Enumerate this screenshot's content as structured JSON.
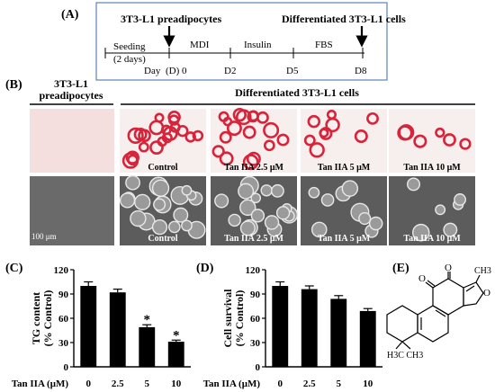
{
  "panel_labels": {
    "a": "(A)",
    "b": "(B)",
    "c": "(C)",
    "d": "(D)",
    "e": "(E)"
  },
  "timeline": {
    "start_label": "3T3-L1 preadipocytes",
    "end_label": "Differentiated 3T3-L1 cells",
    "seeding": "Seeding",
    "seeding_days": "(2 days)",
    "day_prefix": "Day",
    "day0": "(D) 0",
    "d2": "D2",
    "d5": "D5",
    "d8": "D8",
    "stage_mdi": "MDI",
    "stage_insulin": "Insulin",
    "stage_fbs": "FBS"
  },
  "micrographs": {
    "header_left_line1": "3T3-L1",
    "header_left_line2": "preadipocytes",
    "header_right": "Differentiated 3T3-L1 cells",
    "scale_bar": "100 μm",
    "captions": [
      "Control",
      "Tan IIA 2.5 μM",
      "Tan IIA  5 μM",
      "Tan IIA  10 μM"
    ],
    "bottom_captions": [
      "Control",
      "Tan IIA 2.5 μM",
      "Tan IIA  5 μM",
      "Tan IIA  10 μM"
    ],
    "stain_color": "#d8243a",
    "background_color": "#f4dede"
  },
  "chart_data": [
    {
      "type": "bar",
      "panel": "(C)",
      "ylabel_line1": "TG content",
      "ylabel_line2": "(% Control)",
      "xlabel": "Tan IIA (μM)",
      "categories": [
        "0",
        "2.5",
        "5",
        "10"
      ],
      "values": [
        100,
        92,
        49,
        31
      ],
      "errors": [
        5,
        4,
        3,
        2
      ],
      "significance": [
        "",
        "",
        "*",
        "*"
      ],
      "ylim": [
        0,
        120
      ],
      "yticks": [
        0,
        30,
        60,
        90,
        120
      ],
      "bar_color": "#000000"
    },
    {
      "type": "bar",
      "panel": "(D)",
      "ylabel_line1": "Cell survival",
      "ylabel_line2": "(% Control)",
      "xlabel": "Tan IIA (μM)",
      "categories": [
        "0",
        "2.5",
        "5",
        "10"
      ],
      "values": [
        100,
        96,
        84,
        69
      ],
      "errors": [
        5,
        4,
        4,
        3
      ],
      "significance": [
        "",
        "",
        "",
        ""
      ],
      "ylim": [
        0,
        120
      ],
      "yticks": [
        0,
        30,
        60,
        90,
        120
      ],
      "bar_color": "#000000"
    }
  ],
  "structure": {
    "atom_o1": "O",
    "atom_o2": "O",
    "atom_o3": "O",
    "methyl_top": "CH3",
    "gem_dimethyl": "H3C  CH3"
  }
}
